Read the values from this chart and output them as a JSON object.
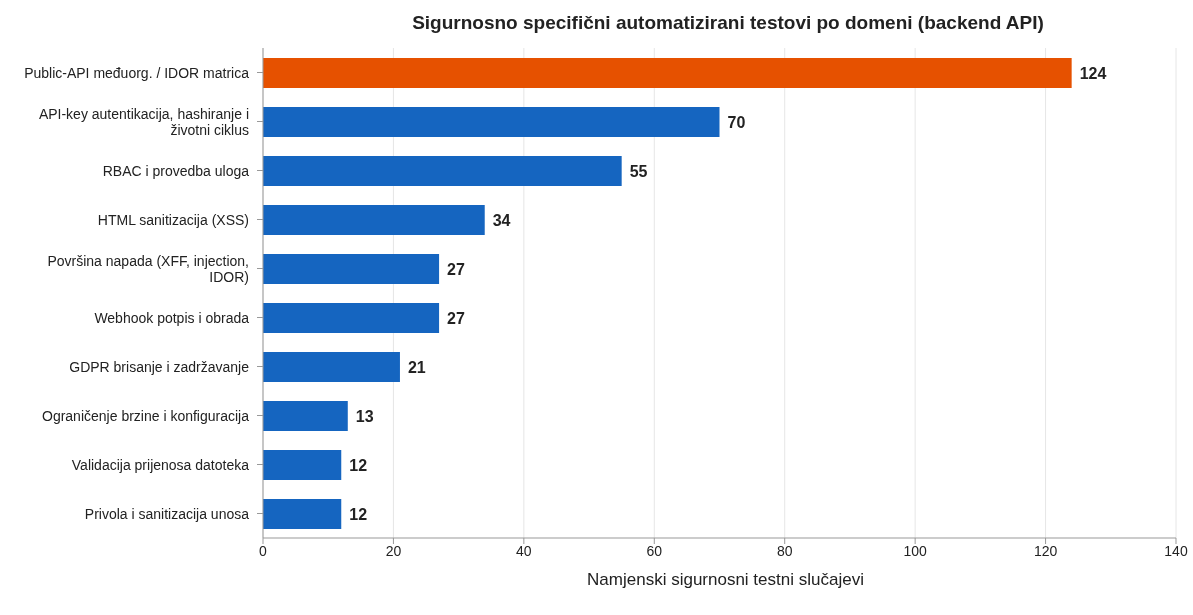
{
  "chart_data": {
    "type": "bar",
    "orientation": "horizontal",
    "title": "Sigurnosno specifični automatizirani testovi po domeni (backend API)",
    "xlabel": "Namjenski sigurnosni testni slučajevi",
    "categories": [
      "Public-API međuorg. / IDOR matrica",
      "API-key autentikacija, hashiranje i životni ciklus",
      "RBAC i provedba uloga",
      "HTML sanitizacija (XSS)",
      "Površina napada (XFF, injection, IDOR)",
      "Webhook potpis i obrada",
      "GDPR brisanje i zadržavanje",
      "Ograničenje brzine i konfiguracija",
      "Validacija prijenosa datoteka",
      "Privola i sanitizacija unosa"
    ],
    "values": [
      124,
      70,
      55,
      34,
      27,
      27,
      21,
      13,
      12,
      12
    ],
    "colors": [
      "#e65100",
      "#1565c0",
      "#1565c0",
      "#1565c0",
      "#1565c0",
      "#1565c0",
      "#1565c0",
      "#1565c0",
      "#1565c0",
      "#1565c0"
    ],
    "xlim": [
      0,
      140
    ],
    "xticks": [
      0,
      20,
      40,
      60,
      80,
      100,
      120,
      140
    ],
    "grid": "x",
    "data_labels": true
  }
}
